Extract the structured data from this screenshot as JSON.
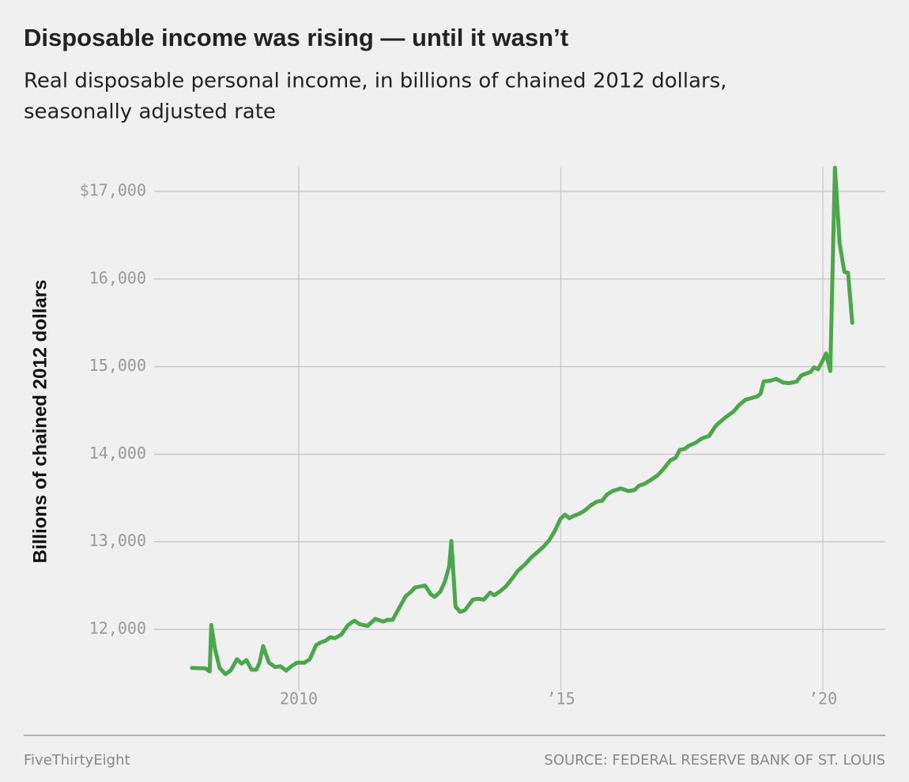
{
  "chart_data": {
    "type": "line",
    "title": "Disposable income was rising — until it wasn’t",
    "subtitle": [
      "Real disposable personal income, in billions of chained 2012 dollars,",
      "seasonally adjusted rate"
    ],
    "y_label": "Billions of chained 2012 dollars",
    "footer_left": "FiveThirtyEight",
    "footer_right": "SOURCE: FEDERAL RESERVE BANK OF ST. LOUIS",
    "color": "#4aa84a",
    "grid": true,
    "xlim": [
      2007.24,
      2021.19
    ],
    "ylim": [
      11300,
      17300
    ],
    "xticks": [
      {
        "value": 2010,
        "label": "2010"
      },
      {
        "value": 2015,
        "label": "’15"
      },
      {
        "value": 2020,
        "label": "’20"
      }
    ],
    "yticks": [
      {
        "value": 12000,
        "label": "12,000"
      },
      {
        "value": 13000,
        "label": "13,000"
      },
      {
        "value": 14000,
        "label": "14,000"
      },
      {
        "value": 15000,
        "label": "15,000"
      },
      {
        "value": 16000,
        "label": "16,000"
      },
      {
        "value": 17000,
        "label": "$17,000"
      }
    ],
    "x": [
      2007.96,
      2008.22,
      2008.3,
      2008.33,
      2008.4,
      2008.49,
      2008.6,
      2008.7,
      2008.82,
      2008.91,
      2009.0,
      2009.1,
      2009.19,
      2009.25,
      2009.32,
      2009.43,
      2009.55,
      2009.65,
      2009.76,
      2009.88,
      2009.97,
      2010.11,
      2010.21,
      2010.33,
      2010.41,
      2010.51,
      2010.6,
      2010.69,
      2010.81,
      2010.94,
      2011.06,
      2011.16,
      2011.31,
      2011.46,
      2011.61,
      2011.69,
      2011.79,
      2011.92,
      2012.04,
      2012.14,
      2012.22,
      2012.41,
      2012.52,
      2012.59,
      2012.7,
      2012.79,
      2012.87,
      2012.91,
      2012.99,
      2013.08,
      2013.17,
      2013.32,
      2013.42,
      2013.53,
      2013.65,
      2013.73,
      2013.85,
      2013.95,
      2014.07,
      2014.18,
      2014.33,
      2014.43,
      2014.55,
      2014.68,
      2014.78,
      2014.89,
      2014.99,
      2015.08,
      2015.16,
      2015.26,
      2015.35,
      2015.46,
      2015.58,
      2015.69,
      2015.79,
      2015.88,
      2015.99,
      2016.14,
      2016.29,
      2016.4,
      2016.49,
      2016.59,
      2016.7,
      2016.85,
      2016.97,
      2017.09,
      2017.19,
      2017.27,
      2017.36,
      2017.45,
      2017.57,
      2017.69,
      2017.83,
      2017.95,
      2018.02,
      2018.14,
      2018.3,
      2018.4,
      2018.52,
      2018.63,
      2018.75,
      2018.81,
      2018.87,
      2019.0,
      2019.11,
      2019.23,
      2019.35,
      2019.5,
      2019.59,
      2019.68,
      2019.77,
      2019.83,
      2019.91,
      2019.98,
      2020.06,
      2020.14,
      2020.23,
      2020.32,
      2020.41,
      2020.48,
      2020.56
    ],
    "values": [
      11560,
      11555,
      11520,
      12050,
      11780,
      11560,
      11490,
      11530,
      11660,
      11610,
      11650,
      11540,
      11540,
      11620,
      11810,
      11620,
      11570,
      11580,
      11530,
      11590,
      11620,
      11620,
      11660,
      11820,
      11850,
      11870,
      11910,
      11900,
      11940,
      12050,
      12100,
      12060,
      12040,
      12120,
      12090,
      12110,
      12110,
      12250,
      12380,
      12430,
      12480,
      12500,
      12400,
      12370,
      12430,
      12550,
      12720,
      13010,
      12260,
      12200,
      12220,
      12340,
      12350,
      12340,
      12420,
      12390,
      12440,
      12490,
      12580,
      12670,
      12750,
      12820,
      12880,
      12950,
      13020,
      13130,
      13260,
      13310,
      13270,
      13300,
      13320,
      13360,
      13420,
      13460,
      13470,
      13540,
      13580,
      13610,
      13580,
      13590,
      13640,
      13660,
      13700,
      13760,
      13840,
      13930,
      13960,
      14050,
      14060,
      14100,
      14130,
      14180,
      14210,
      14320,
      14360,
      14420,
      14490,
      14560,
      14620,
      14640,
      14660,
      14690,
      14830,
      14840,
      14860,
      14820,
      14810,
      14830,
      14900,
      14920,
      14940,
      14990,
      14970,
      15050,
      15150,
      14950,
      17270,
      16400,
      16080,
      16070,
      15500
    ]
  }
}
